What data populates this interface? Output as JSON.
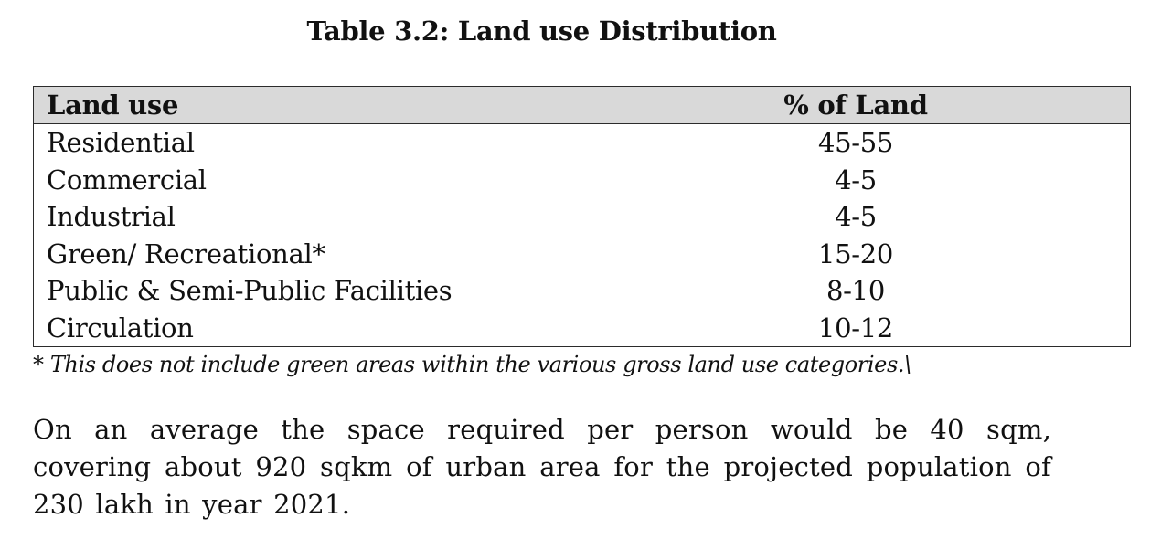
{
  "document": {
    "table_title": "Table 3.2: Land use Distribution",
    "table": {
      "headers": [
        "Land use",
        "% of Land"
      ],
      "rows": [
        [
          "Residential",
          "45-55"
        ],
        [
          "Commercial",
          "4-5"
        ],
        [
          "Industrial",
          "4-5"
        ],
        [
          "Green/ Recreational*",
          "15-20"
        ],
        [
          "Public & Semi-Public Facilities",
          "8-10"
        ],
        [
          "Circulation",
          "10-12"
        ]
      ]
    },
    "footnote": "* This does not include green areas within the various gross land use categories.\\",
    "paragraph": "On an average the space required per person would be 40 sqm, covering about 920 sqkm of urban area for the projected population of 230 lakh in year 2021."
  }
}
